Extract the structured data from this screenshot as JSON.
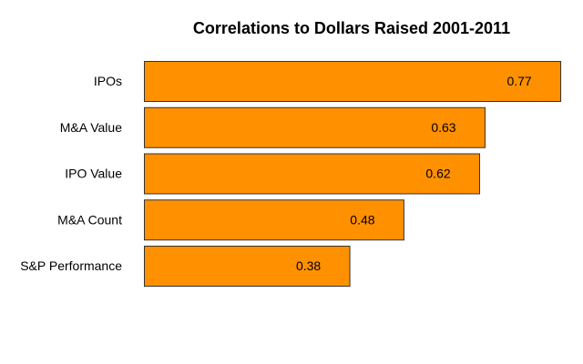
{
  "chart_data": {
    "type": "bar",
    "orientation": "horizontal",
    "title": "Correlations to Dollars Raised 2001-2011",
    "xlabel": "",
    "ylabel": "",
    "categories": [
      "IPOs",
      "M&A Value",
      "IPO Value",
      "M&A Count",
      "S&P Performance"
    ],
    "values": [
      0.77,
      0.63,
      0.62,
      0.48,
      0.38
    ],
    "value_labels": [
      "0.77",
      "0.63",
      "0.62",
      "0.48",
      "0.38"
    ],
    "xlim": [
      0,
      0.78
    ],
    "grid": false,
    "legend": "none",
    "bar_color": "#FF9100",
    "bar_edge_color": "#333333"
  }
}
